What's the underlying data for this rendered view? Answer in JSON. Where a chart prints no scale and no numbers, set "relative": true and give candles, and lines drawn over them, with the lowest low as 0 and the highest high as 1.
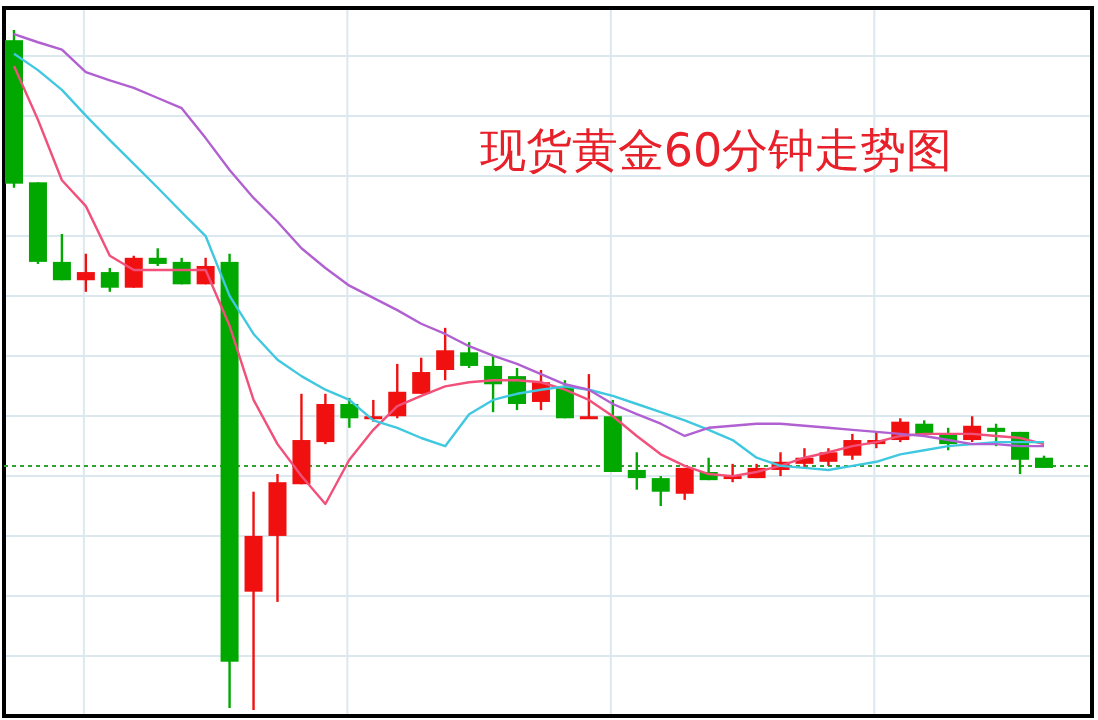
{
  "chart_data": {
    "type": "candlestick",
    "title": "现货黄金60分钟走势图",
    "relative": true,
    "grid": true,
    "categories": [
      null,
      null,
      null,
      null,
      null,
      null,
      null,
      null,
      null,
      null,
      null,
      null,
      null,
      null,
      null,
      null,
      null,
      null,
      null,
      null,
      null,
      null,
      null,
      null,
      null,
      null,
      null,
      null,
      null,
      null,
      null,
      null,
      null,
      null,
      null,
      null,
      null,
      null,
      null,
      null,
      null,
      null,
      null,
      null
    ],
    "ohlc": [
      [
        0.985,
        1,
        0.768,
        0.774
      ],
      [
        0.776,
        0.776,
        0.656,
        0.659
      ],
      [
        0.659,
        0.7,
        0.632,
        0.632
      ],
      [
        0.632,
        0.671,
        0.615,
        0.644
      ],
      [
        0.644,
        0.65,
        0.615,
        0.621
      ],
      [
        0.621,
        0.668,
        0.621,
        0.665
      ],
      [
        0.665,
        0.679,
        0.653,
        0.656
      ],
      [
        0.659,
        0.665,
        0.626,
        0.626
      ],
      [
        0.626,
        0.665,
        0.626,
        0.653
      ],
      [
        0.659,
        0.671,
        0.003,
        0.071
      ],
      [
        0.174,
        0.321,
        0,
        0.256
      ],
      [
        0.256,
        0.347,
        0.159,
        0.335
      ],
      [
        0.332,
        0.465,
        0.332,
        0.397
      ],
      [
        0.394,
        0.465,
        0.391,
        0.45
      ],
      [
        0.45,
        0.459,
        0.415,
        0.429
      ],
      [
        0.429,
        0.456,
        0.424,
        0.432
      ],
      [
        0.432,
        0.509,
        0.429,
        0.468
      ],
      [
        0.465,
        0.518,
        0.465,
        0.497
      ],
      [
        0.5,
        0.562,
        0.485,
        0.529
      ],
      [
        0.526,
        0.541,
        0.503,
        0.506
      ],
      [
        0.506,
        0.521,
        0.438,
        0.479
      ],
      [
        0.491,
        0.503,
        0.441,
        0.45
      ],
      [
        0.453,
        0.5,
        0.441,
        0.482
      ],
      [
        0.476,
        0.485,
        0.429,
        0.429
      ],
      [
        0.429,
        0.494,
        0.429,
        0.432
      ],
      [
        0.432,
        0.456,
        0.35,
        0.35
      ],
      [
        0.353,
        0.379,
        0.324,
        0.341
      ],
      [
        0.341,
        0.344,
        0.3,
        0.321
      ],
      [
        0.318,
        0.356,
        0.309,
        0.356
      ],
      [
        0.35,
        0.371,
        0.338,
        0.338
      ],
      [
        0.341,
        0.362,
        0.335,
        0.344
      ],
      [
        0.341,
        0.362,
        0.341,
        0.356
      ],
      [
        0.353,
        0.379,
        0.344,
        0.365
      ],
      [
        0.362,
        0.385,
        0.356,
        0.371
      ],
      [
        0.365,
        0.385,
        0.359,
        0.379
      ],
      [
        0.374,
        0.406,
        0.368,
        0.397
      ],
      [
        0.391,
        0.409,
        0.385,
        0.397
      ],
      [
        0.397,
        0.429,
        0.394,
        0.424
      ],
      [
        0.421,
        0.426,
        0.406,
        0.406
      ],
      [
        0.406,
        0.415,
        0.382,
        0.391
      ],
      [
        0.397,
        0.432,
        0.394,
        0.418
      ],
      [
        0.415,
        0.421,
        0.388,
        0.409
      ],
      [
        0.409,
        0.409,
        0.347,
        0.368
      ],
      [
        0.371,
        0.374,
        0.356,
        0.356
      ]
    ],
    "colors": [
      "#00a800",
      "#00a800",
      "#00a800",
      "#f01010",
      "#00a800",
      "#f01010",
      "#00a800",
      "#00a800",
      "#f01010",
      "#00a800",
      "#f01010",
      "#f01010",
      "#f01010",
      "#f01010",
      "#00a800",
      "#f01010",
      "#f01010",
      "#f01010",
      "#f01010",
      "#00a800",
      "#00a800",
      "#00a800",
      "#f01010",
      "#00a800",
      "#f01010",
      "#00a800",
      "#00a800",
      "#00a800",
      "#f01010",
      "#00a800",
      "#f01010",
      "#f01010",
      "#f01010",
      "#f01010",
      "#f01010",
      "#f01010",
      "#f01010",
      "#f01010",
      "#00a800",
      "#00a800",
      "#f01010",
      "#00a800",
      "#00a800",
      "#00a800"
    ],
    "series": [
      {
        "type": "line",
        "color": "#f0507a",
        "values": [
          0.947,
          0.868,
          0.779,
          0.741,
          0.668,
          0.647,
          0.647,
          0.647,
          0.647,
          0.565,
          0.456,
          0.391,
          0.344,
          0.303,
          0.368,
          0.412,
          0.447,
          0.462,
          0.476,
          0.482,
          0.485,
          0.485,
          0.482,
          0.471,
          0.456,
          0.432,
          0.403,
          0.376,
          0.359,
          0.347,
          0.344,
          0.35,
          0.359,
          0.371,
          0.379,
          0.388,
          0.394,
          0.403,
          0.406,
          0.406,
          0.406,
          0.403,
          0.4,
          0.391
        ]
      },
      {
        "type": "line",
        "color": "#40c8e0",
        "values": [
          0.965,
          0.941,
          0.912,
          0.874,
          0.838,
          0.803,
          0.768,
          0.732,
          0.697,
          0.609,
          0.553,
          0.515,
          0.491,
          0.471,
          0.456,
          0.426,
          0.415,
          0.4,
          0.388,
          0.435,
          0.456,
          0.465,
          0.471,
          0.476,
          0.471,
          0.462,
          0.45,
          0.438,
          0.426,
          0.412,
          0.397,
          0.371,
          0.359,
          0.356,
          0.353,
          0.359,
          0.365,
          0.376,
          0.382,
          0.388,
          0.391,
          0.394,
          0.394,
          0.394
        ]
      },
      {
        "type": "line",
        "color": "#b060d0",
        "values": [
          0.994,
          0.982,
          0.971,
          0.938,
          0.926,
          0.915,
          0.9,
          0.885,
          0.841,
          0.794,
          0.753,
          0.718,
          0.679,
          0.65,
          0.624,
          0.606,
          0.588,
          0.568,
          0.553,
          0.535,
          0.521,
          0.509,
          0.494,
          0.479,
          0.471,
          0.45,
          0.435,
          0.421,
          0.403,
          0.415,
          0.418,
          0.421,
          0.421,
          0.418,
          0.415,
          0.412,
          0.409,
          0.406,
          0.403,
          0.397,
          0.391,
          0.391,
          0.388,
          0.388
        ]
      }
    ],
    "ref_lines": [
      {
        "axis": "y",
        "value": 0.359,
        "color": "#30a030",
        "line_style": "dotted"
      }
    ]
  }
}
